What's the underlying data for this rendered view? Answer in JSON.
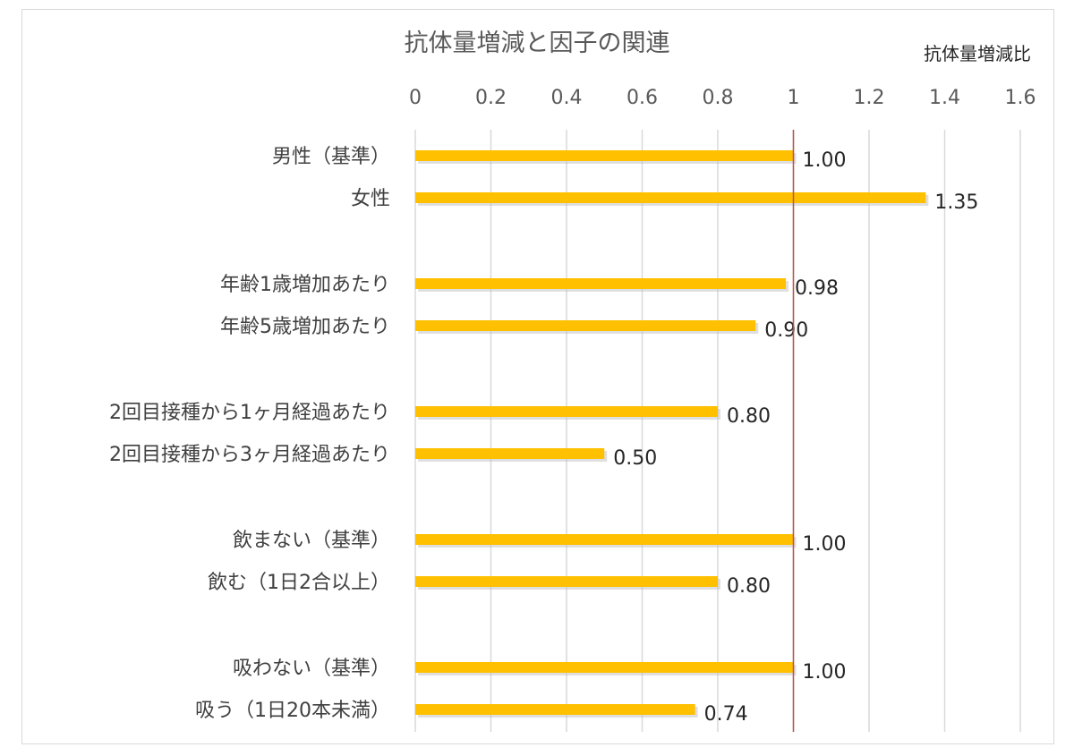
{
  "chart_data": {
    "type": "bar",
    "orientation": "horizontal",
    "title": "抗体量増減と因子の関連",
    "unit_label": "抗体量増減比",
    "xlim": [
      0,
      1.6
    ],
    "x_ticks": [
      "0",
      "0.2",
      "0.4",
      "0.6",
      "0.8",
      "1",
      "1.2",
      "1.4",
      "1.6"
    ],
    "reference_line": 1,
    "bar_color": "#FFC000",
    "reference_color": "#C0504D",
    "grid": true,
    "grid_axis": "x",
    "axis_position": "top",
    "groups": [
      {
        "categories": [
          "男性（基準）",
          "女性"
        ],
        "values": [
          1.0,
          1.35
        ],
        "labels": [
          "1.00",
          "1.35"
        ]
      },
      {
        "categories": [
          "年齢1歳増加あたり",
          "年齢5歳増加あたり"
        ],
        "values": [
          0.98,
          0.9
        ],
        "labels": [
          "0.98",
          "0.90"
        ]
      },
      {
        "categories": [
          "2回目接種から1ヶ月経過あたり",
          "2回目接種から3ヶ月経過あたり"
        ],
        "values": [
          0.8,
          0.5
        ],
        "labels": [
          "0.80",
          "0.50"
        ]
      },
      {
        "categories": [
          "飲まない（基準）",
          "飲む（1日2合以上）"
        ],
        "values": [
          1.0,
          0.8
        ],
        "labels": [
          "1.00",
          "0.80"
        ]
      },
      {
        "categories": [
          "吸わない（基準）",
          "吸う（1日20本未満）"
        ],
        "values": [
          1.0,
          0.74
        ],
        "labels": [
          "1.00",
          "0.74"
        ]
      }
    ]
  }
}
